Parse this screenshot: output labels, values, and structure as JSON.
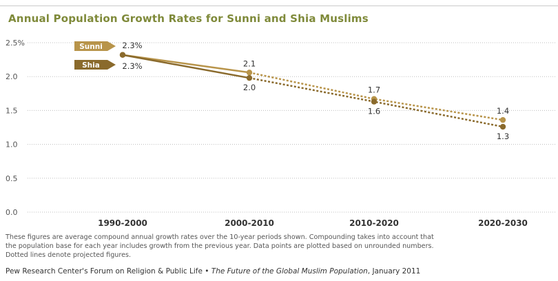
{
  "title": "Annual Population Growth Rates for Sunni and Shia Muslims",
  "chart_data": {
    "type": "line",
    "title": "Annual Population Growth Rates for Sunni and Shia Muslims",
    "categories": [
      "1990-2000",
      "2000-2010",
      "2010-2020",
      "2020-2030"
    ],
    "y_ticks": [
      "0.0",
      "0.5",
      "1.0",
      "1.5",
      "2.0",
      "2.5%"
    ],
    "ylim": [
      0,
      2.5
    ],
    "grid": true,
    "projected_from_index": 1,
    "series": [
      {
        "name": "Sunni",
        "values": [
          2.32,
          2.06,
          1.67,
          1.36
        ],
        "labels": [
          "2.3%",
          "2.1",
          "1.7",
          "1.4"
        ],
        "color": "#b8944a"
      },
      {
        "name": "Shia",
        "values": [
          2.32,
          1.98,
          1.63,
          1.26
        ],
        "labels": [
          "2.3%",
          "2.0",
          "1.6",
          "1.3"
        ],
        "color": "#8a6a2c"
      }
    ]
  },
  "note_lines": [
    "These figures are average compound annual growth rates over the 10-year periods shown. Compounding takes into account that",
    "the population base for each year includes growth from the previous year. Data points are plotted based on unrounded numbers.",
    "Dotted lines denote projected figures."
  ],
  "source": {
    "org": "Pew Research Center's Forum on Religion & Public Life •",
    "publication": "The Future of the Global Muslim Population",
    "date": ", January 2011"
  }
}
